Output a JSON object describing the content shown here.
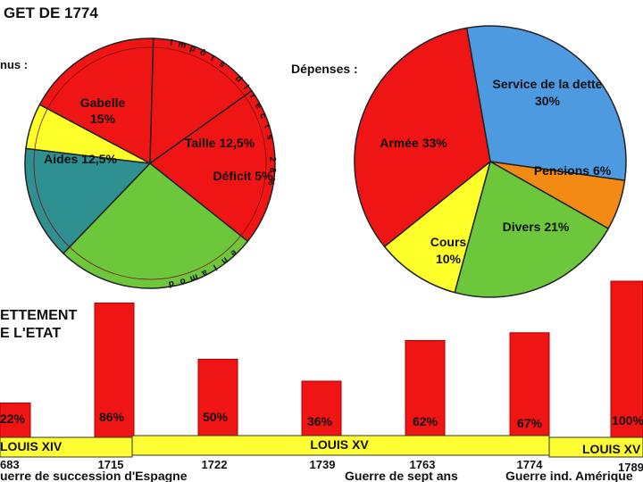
{
  "page": {
    "title": "GET DE 1774",
    "recettes_label": "nus :",
    "depenses_label": "Dépenses :",
    "endettement_line1": "ETTEMENT",
    "endettement_line2": "E L'ETAT",
    "arc_impots_directs": "Impôts directs 28%",
    "arc_impots_indirects": "Impôts indirects 45%",
    "arc_domaine": "domaine"
  },
  "colors": {
    "red": "#f01515",
    "green": "#6cc83a",
    "teal": "#2e9090",
    "yellow": "#ffff2a",
    "blue": "#4e9ae0",
    "orange": "#f28a14",
    "band": "#ffff33",
    "outline": "#222222"
  },
  "chart_data": [
    {
      "type": "pie",
      "title": "",
      "slices": [
        {
          "label": "Gabelle 15%",
          "value": 15,
          "color": "#f01515"
        },
        {
          "label": "Aides 12,5%",
          "value": 12.5,
          "color": "#f01515"
        },
        {
          "label": "",
          "value": 17.5,
          "color": "#f01515"
        },
        {
          "label": "",
          "value": 22.5,
          "color": "#6cc83a"
        },
        {
          "label": "Taille 12,5%",
          "value": 12.5,
          "color": "#2e9090"
        },
        {
          "label": "Déficit 5%",
          "value": 5,
          "color": "#ffff2a"
        }
      ]
    },
    {
      "type": "pie",
      "title": "Dépenses :",
      "slices": [
        {
          "label": "Service de la dette 30%",
          "value": 30,
          "color": "#4e9ae0"
        },
        {
          "label": "Pensions 6%",
          "value": 6,
          "color": "#f28a14"
        },
        {
          "label": "Divers 21%",
          "value": 21,
          "color": "#6cc83a"
        },
        {
          "label": "Cours 10%",
          "value": 10,
          "color": "#ffff2a"
        },
        {
          "label": "Armée 33%",
          "value": 33,
          "color": "#f01515"
        }
      ]
    },
    {
      "type": "bar",
      "title": "ETTEMENT E L'ETAT",
      "unit": "%",
      "years": [
        "683",
        "1715",
        "1722",
        "1739",
        "1763",
        "1774",
        "1789"
      ],
      "values": [
        22,
        86,
        50,
        36,
        62,
        67,
        100
      ],
      "value_labels": [
        "22%",
        "86%",
        "50%",
        "36%",
        "62%",
        "67%",
        "100%"
      ],
      "reigns": [
        "LOUIS XIV",
        "LOUIS XV",
        "LOUIS XV"
      ],
      "events": [
        "uerre de succession d'Espagne",
        "Guerre de sept ans",
        "Guerre ind. Amérique"
      ],
      "ylim": [
        0,
        100
      ]
    }
  ]
}
